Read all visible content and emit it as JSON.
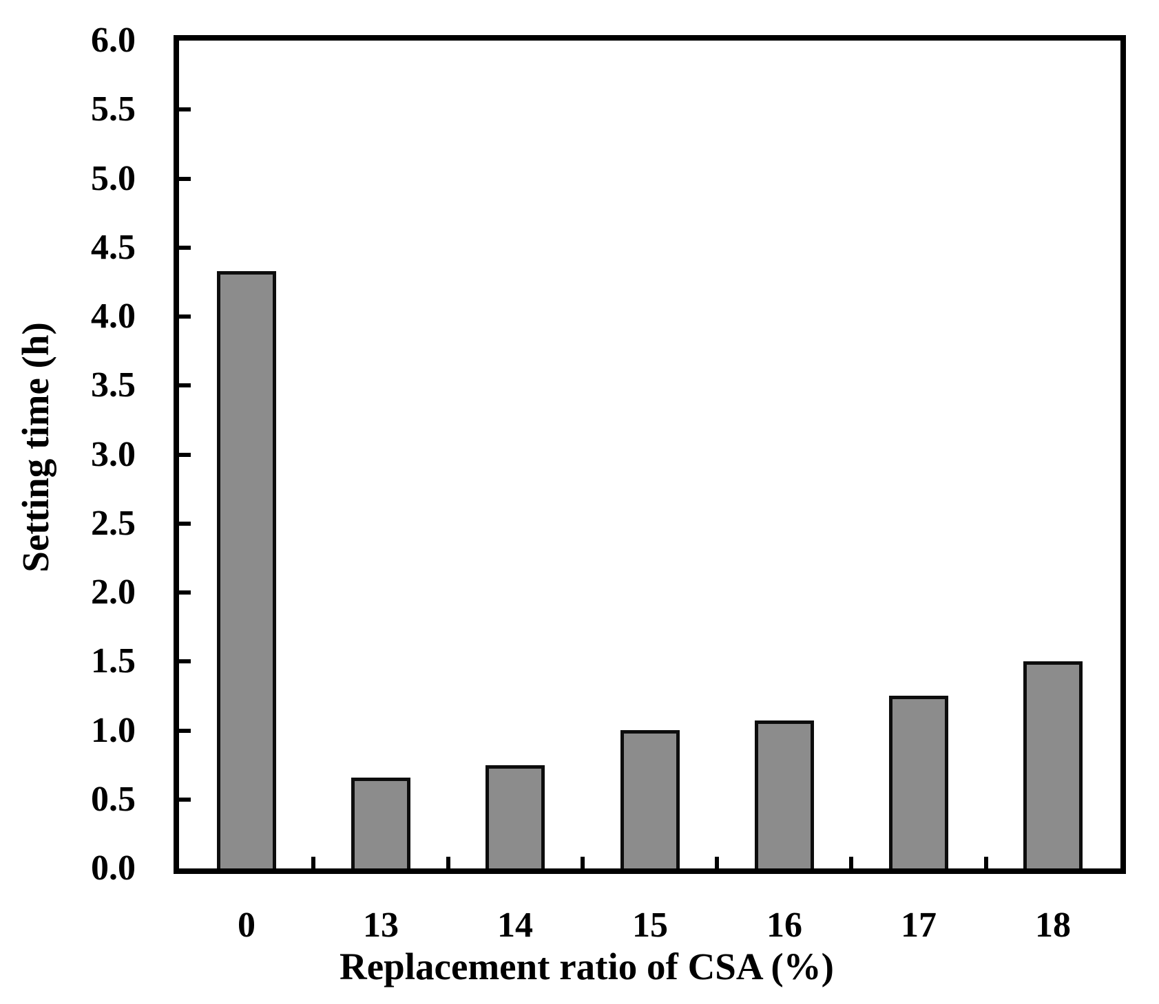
{
  "chart_data": {
    "type": "bar",
    "title": "",
    "categories": [
      "0",
      "13",
      "14",
      "15",
      "16",
      "17",
      "18"
    ],
    "values": [
      4.33,
      0.66,
      0.75,
      1.0,
      1.07,
      1.25,
      1.5
    ],
    "xlabel": "Replacement ratio of CSA (%)",
    "ylabel": "Setting time (h)",
    "ylim": [
      0,
      6
    ],
    "ytick_step": 0.5,
    "ytick_labels": [
      "0.0",
      "0.5",
      "1.0",
      "1.5",
      "2.0",
      "2.5",
      "3.0",
      "3.5",
      "4.0",
      "4.5",
      "5.0",
      "5.5",
      "6.0"
    ],
    "grid": false,
    "legend": "none",
    "colors": {
      "bar_fill": "#8c8c8c",
      "bar_border": "#0d0d0d",
      "axis": "#000000",
      "background": "#ffffff",
      "text": "#000000"
    }
  }
}
